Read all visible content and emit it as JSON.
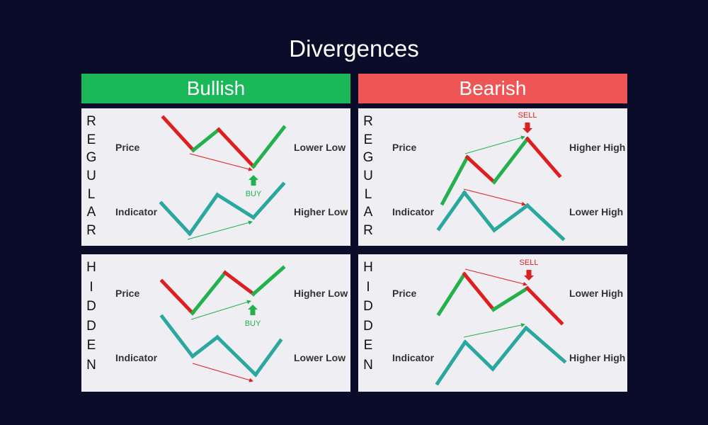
{
  "title": "Divergences",
  "headers": {
    "bullish": "Bullish",
    "bearish": "Bearish"
  },
  "colors": {
    "bullish": "#1bb85a",
    "bearish": "#f05555",
    "up": "#22b14c",
    "down": "#dd1f1f",
    "indicator": "#2aa8a0"
  },
  "panels": [
    {
      "side": "bullish",
      "type": "REGULAR",
      "price_label": "Price",
      "indicator_label": "Indicator",
      "price_result": "Lower Low",
      "indicator_result": "Higher Low",
      "signal": "BUY"
    },
    {
      "side": "bearish",
      "type": "REGULAR",
      "price_label": "Price",
      "indicator_label": "Indicator",
      "price_result": "Higher High",
      "indicator_result": "Lower High",
      "signal": "SELL"
    },
    {
      "side": "bullish",
      "type": "HIDDEN",
      "price_label": "Price",
      "indicator_label": "Indicator",
      "price_result": "Higher Low",
      "indicator_result": "Lower Low",
      "signal": "BUY"
    },
    {
      "side": "bearish",
      "type": "HIDDEN",
      "price_label": "Price",
      "indicator_label": "Indicator",
      "price_result": "Lower High",
      "indicator_result": "Higher High",
      "signal": "SELL"
    }
  ]
}
